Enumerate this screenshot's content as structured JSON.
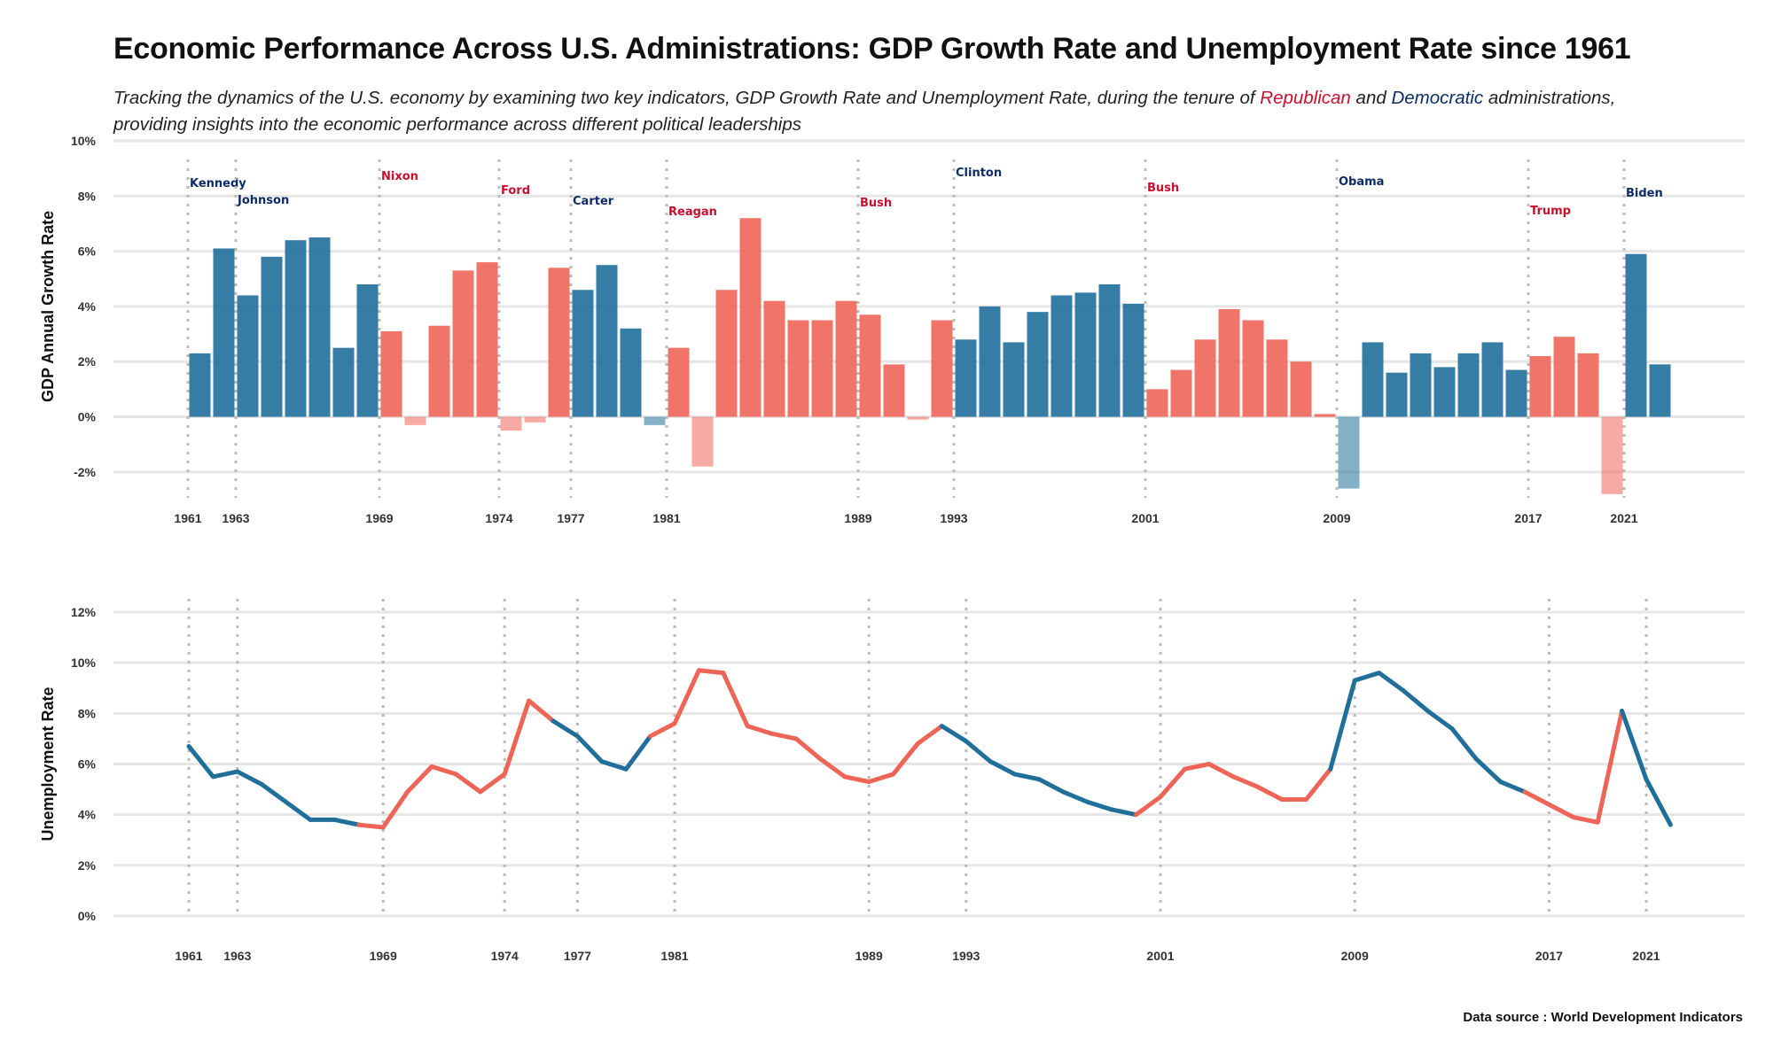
{
  "title": "Economic Performance Across U.S. Administrations: GDP Growth Rate and Unemployment Rate since 1961",
  "subtitle": {
    "part1": "Tracking the dynamics of the U.S. economy by examining two key indicators, GDP Growth Rate and Unemployment Rate, during the tenure of ",
    "republican": "Republican",
    "part2": " and ",
    "democratic": "Democratic",
    "part3": " administrations, providing insights into the economic performance across different political leaderships"
  },
  "source": "Data source : World Development Indicators",
  "colors": {
    "democratic": "#1f6f9a",
    "republican": "#ee6557",
    "democratic_label": "#0d2b66",
    "republican_label": "#c8102e",
    "grid": "#e6e6e6",
    "divider": "#bbbbbb"
  },
  "chart_data": [
    {
      "type": "bar",
      "ylabel": "GDP Annual Growth Rate",
      "ylim": [
        -3,
        10
      ],
      "yticks": [
        "-2%",
        "0%",
        "2%",
        "4%",
        "6%",
        "8%",
        "10%"
      ],
      "ytick_values": [
        -2,
        0,
        2,
        4,
        6,
        8,
        10
      ],
      "xticks": [
        1961,
        1963,
        1969,
        1974,
        1977,
        1981,
        1989,
        1993,
        2001,
        2009,
        2017,
        2021
      ],
      "x": [
        1961,
        1962,
        1963,
        1964,
        1965,
        1966,
        1967,
        1968,
        1969,
        1970,
        1971,
        1972,
        1973,
        1974,
        1975,
        1976,
        1977,
        1978,
        1979,
        1980,
        1981,
        1982,
        1983,
        1984,
        1985,
        1986,
        1987,
        1988,
        1989,
        1990,
        1991,
        1992,
        1993,
        1994,
        1995,
        1996,
        1997,
        1998,
        1999,
        2000,
        2001,
        2002,
        2003,
        2004,
        2005,
        2006,
        2007,
        2008,
        2009,
        2010,
        2011,
        2012,
        2013,
        2014,
        2015,
        2016,
        2017,
        2018,
        2019,
        2020,
        2021,
        2022
      ],
      "values": [
        2.3,
        6.1,
        4.4,
        5.8,
        6.4,
        6.5,
        2.5,
        4.8,
        3.1,
        -0.3,
        3.3,
        5.3,
        5.6,
        -0.5,
        -0.2,
        5.4,
        4.6,
        5.5,
        3.2,
        -0.3,
        2.5,
        -1.8,
        4.6,
        7.2,
        4.2,
        3.5,
        3.5,
        4.2,
        3.7,
        1.9,
        -0.1,
        3.5,
        2.8,
        4.0,
        2.7,
        3.8,
        4.4,
        4.5,
        4.8,
        4.1,
        1.0,
        1.7,
        2.8,
        3.9,
        3.5,
        2.8,
        2.0,
        0.1,
        -2.6,
        2.7,
        1.6,
        2.3,
        1.8,
        2.3,
        2.7,
        1.7,
        2.2,
        2.9,
        2.3,
        -2.8,
        5.9,
        1.9
      ],
      "party": [
        "D",
        "D",
        "D",
        "D",
        "D",
        "D",
        "D",
        "D",
        "R",
        "R",
        "R",
        "R",
        "R",
        "R",
        "R",
        "R",
        "D",
        "D",
        "D",
        "D",
        "R",
        "R",
        "R",
        "R",
        "R",
        "R",
        "R",
        "R",
        "R",
        "R",
        "R",
        "R",
        "D",
        "D",
        "D",
        "D",
        "D",
        "D",
        "D",
        "D",
        "R",
        "R",
        "R",
        "R",
        "R",
        "R",
        "R",
        "R",
        "D",
        "D",
        "D",
        "D",
        "D",
        "D",
        "D",
        "D",
        "R",
        "R",
        "R",
        "R",
        "D",
        "D"
      ],
      "administrations": [
        {
          "name": "Kennedy",
          "start": 1961,
          "party": "D"
        },
        {
          "name": "Johnson",
          "start": 1963,
          "party": "D"
        },
        {
          "name": "Nixon",
          "start": 1969,
          "party": "R"
        },
        {
          "name": "Ford",
          "start": 1974,
          "party": "R"
        },
        {
          "name": "Carter",
          "start": 1977,
          "party": "D"
        },
        {
          "name": "Reagan",
          "start": 1981,
          "party": "R"
        },
        {
          "name": "Bush",
          "start": 1989,
          "party": "R"
        },
        {
          "name": "Clinton",
          "start": 1993,
          "party": "D"
        },
        {
          "name": "Bush",
          "start": 2001,
          "party": "R"
        },
        {
          "name": "Obama",
          "start": 2009,
          "party": "D"
        },
        {
          "name": "Trump",
          "start": 2017,
          "party": "R"
        },
        {
          "name": "Biden",
          "start": 2021,
          "party": "D"
        }
      ]
    },
    {
      "type": "line",
      "ylabel": "Unemployment Rate",
      "ylim": [
        0,
        12
      ],
      "yticks": [
        "0%",
        "2%",
        "4%",
        "6%",
        "8%",
        "10%",
        "12%"
      ],
      "ytick_values": [
        0,
        2,
        4,
        6,
        8,
        10,
        12
      ],
      "xticks": [
        1961,
        1963,
        1969,
        1974,
        1977,
        1981,
        1989,
        1993,
        2001,
        2009,
        2017,
        2021
      ],
      "x": [
        1961,
        1962,
        1963,
        1964,
        1965,
        1966,
        1967,
        1968,
        1969,
        1970,
        1971,
        1972,
        1973,
        1974,
        1975,
        1976,
        1977,
        1978,
        1979,
        1980,
        1981,
        1982,
        1983,
        1984,
        1985,
        1986,
        1987,
        1988,
        1989,
        1990,
        1991,
        1992,
        1993,
        1994,
        1995,
        1996,
        1997,
        1998,
        1999,
        2000,
        2001,
        2002,
        2003,
        2004,
        2005,
        2006,
        2007,
        2008,
        2009,
        2010,
        2011,
        2012,
        2013,
        2014,
        2015,
        2016,
        2017,
        2018,
        2019,
        2020,
        2021,
        2022
      ],
      "values": [
        6.7,
        5.5,
        5.7,
        5.2,
        4.5,
        3.8,
        3.8,
        3.6,
        3.5,
        4.9,
        5.9,
        5.6,
        4.9,
        5.6,
        8.5,
        7.7,
        7.1,
        6.1,
        5.8,
        7.1,
        7.6,
        9.7,
        9.6,
        7.5,
        7.2,
        7.0,
        6.2,
        5.5,
        5.3,
        5.6,
        6.8,
        7.5,
        6.9,
        6.1,
        5.6,
        5.4,
        4.9,
        4.5,
        4.2,
        4.0,
        4.7,
        5.8,
        6.0,
        5.5,
        5.1,
        4.6,
        4.6,
        5.8,
        9.3,
        9.6,
        8.9,
        8.1,
        7.4,
        6.2,
        5.3,
        4.9,
        4.4,
        3.9,
        3.7,
        8.1,
        5.4,
        3.6
      ]
    }
  ]
}
